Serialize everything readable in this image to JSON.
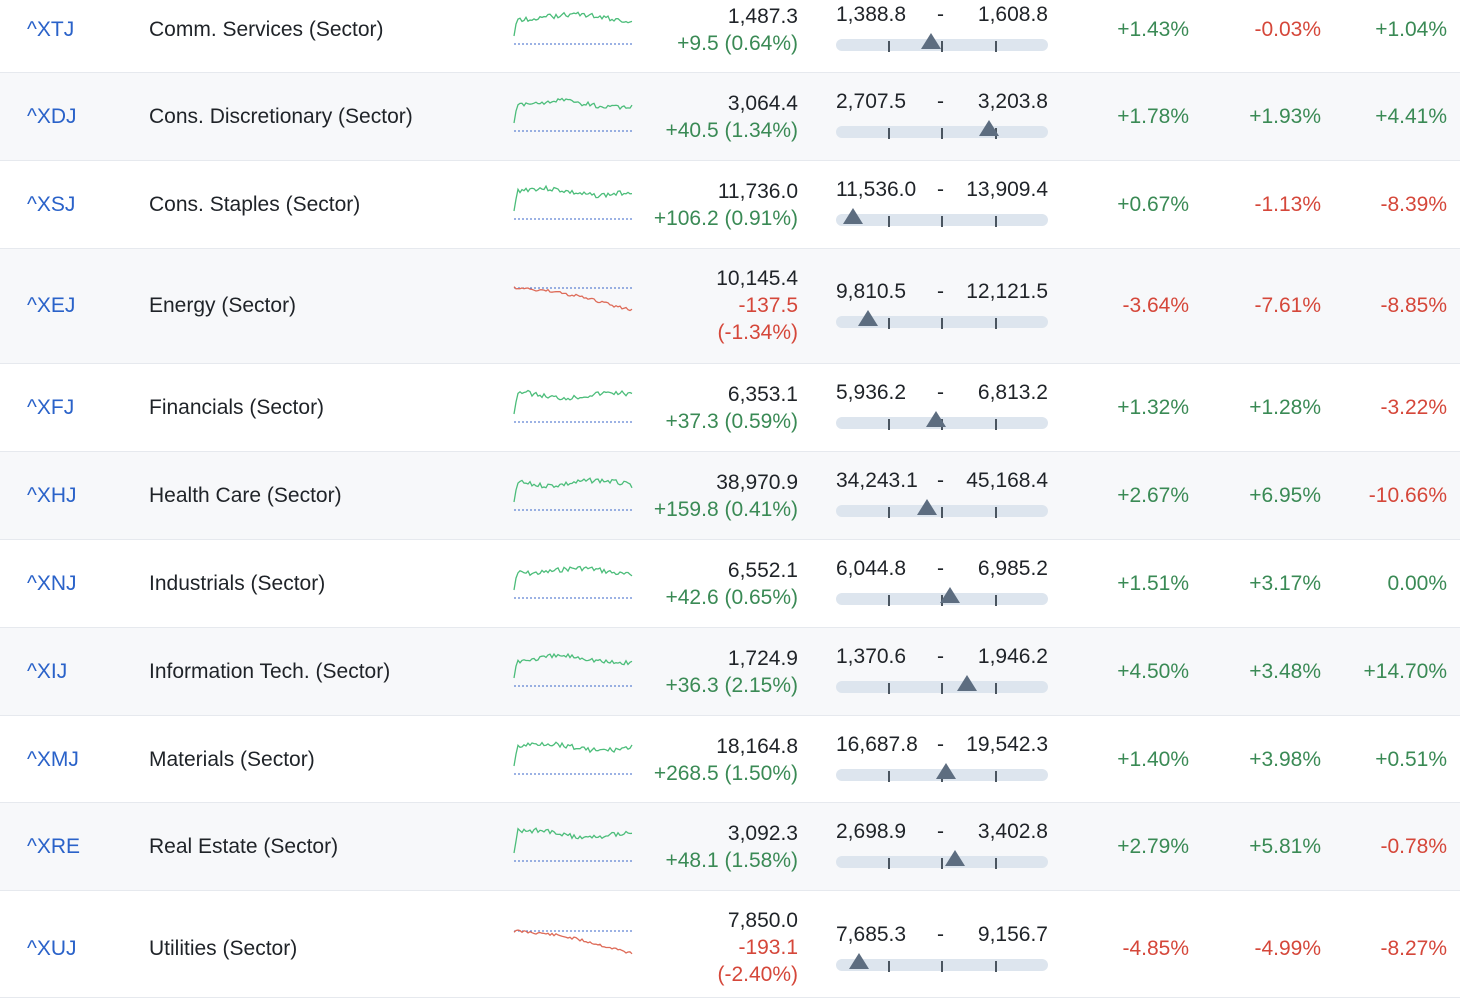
{
  "colors": {
    "positive": "#3a8a55",
    "negative": "#d5473a",
    "link": "#2a62c9",
    "spark_positive": "#4cbd7a",
    "spark_negative": "#de6b58",
    "baseline": "#3a66c8"
  },
  "rows": [
    {
      "symbol": "^XTJ",
      "name": "Comm. Services (Sector)",
      "last": "1,487.3",
      "change": "+9.5 (0.64%)",
      "change_lines": [
        "+9.5 (0.64%)"
      ],
      "trend": "up",
      "low": "1,388.8",
      "sep": "-",
      "high": "1,608.8",
      "range_position": 0.45,
      "p1": "+1.43%",
      "p2": "-0.03%",
      "p3": "+1.04%"
    },
    {
      "symbol": "^XDJ",
      "name": "Cons. Discretionary (Sector)",
      "last": "3,064.4",
      "change": "+40.5 (1.34%)",
      "change_lines": [
        "+40.5 (1.34%)"
      ],
      "trend": "up",
      "low": "2,707.5",
      "sep": "-",
      "high": "3,203.8",
      "range_position": 0.72,
      "p1": "+1.78%",
      "p2": "+1.93%",
      "p3": "+4.41%"
    },
    {
      "symbol": "^XSJ",
      "name": "Cons. Staples (Sector)",
      "last": "11,736.0",
      "change": "+106.2 (0.91%)",
      "change_lines": [
        "+106.2 (0.91%)"
      ],
      "trend": "up",
      "low": "11,536.0",
      "sep": "-",
      "high": "13,909.4",
      "range_position": 0.08,
      "p1": "+0.67%",
      "p2": "-1.13%",
      "p3": "-8.39%"
    },
    {
      "symbol": "^XEJ",
      "name": "Energy (Sector)",
      "last": "10,145.4",
      "change": "-137.5 (-1.34%)",
      "change_lines": [
        "-137.5",
        "(-1.34%)"
      ],
      "trend": "down",
      "low": "9,810.5",
      "sep": "-",
      "high": "12,121.5",
      "range_position": 0.15,
      "p1": "-3.64%",
      "p2": "-7.61%",
      "p3": "-8.85%"
    },
    {
      "symbol": "^XFJ",
      "name": "Financials (Sector)",
      "last": "6,353.1",
      "change": "+37.3 (0.59%)",
      "change_lines": [
        "+37.3 (0.59%)"
      ],
      "trend": "up",
      "low": "5,936.2",
      "sep": "-",
      "high": "6,813.2",
      "range_position": 0.47,
      "p1": "+1.32%",
      "p2": "+1.28%",
      "p3": "-3.22%"
    },
    {
      "symbol": "^XHJ",
      "name": "Health Care (Sector)",
      "last": "38,970.9",
      "change": "+159.8 (0.41%)",
      "change_lines": [
        "+159.8 (0.41%)"
      ],
      "trend": "up",
      "low": "34,243.1",
      "sep": "-",
      "high": "45,168.4",
      "range_position": 0.43,
      "p1": "+2.67%",
      "p2": "+6.95%",
      "p3": "-10.66%"
    },
    {
      "symbol": "^XNJ",
      "name": "Industrials (Sector)",
      "last": "6,552.1",
      "change": "+42.6 (0.65%)",
      "change_lines": [
        "+42.6 (0.65%)"
      ],
      "trend": "up",
      "low": "6,044.8",
      "sep": "-",
      "high": "6,985.2",
      "range_position": 0.54,
      "p1": "+1.51%",
      "p2": "+3.17%",
      "p3": "0.00%"
    },
    {
      "symbol": "^XIJ",
      "name": "Information Tech. (Sector)",
      "last": "1,724.9",
      "change": "+36.3 (2.15%)",
      "change_lines": [
        "+36.3 (2.15%)"
      ],
      "trend": "up",
      "low": "1,370.6",
      "sep": "-",
      "high": "1,946.2",
      "range_position": 0.62,
      "p1": "+4.50%",
      "p2": "+3.48%",
      "p3": "+14.70%"
    },
    {
      "symbol": "^XMJ",
      "name": "Materials (Sector)",
      "last": "18,164.8",
      "change": "+268.5 (1.50%)",
      "change_lines": [
        "+268.5 (1.50%)"
      ],
      "trend": "up",
      "low": "16,687.8",
      "sep": "-",
      "high": "19,542.3",
      "range_position": 0.52,
      "p1": "+1.40%",
      "p2": "+3.98%",
      "p3": "+0.51%"
    },
    {
      "symbol": "^XRE",
      "name": "Real Estate (Sector)",
      "last": "3,092.3",
      "change": "+48.1 (1.58%)",
      "change_lines": [
        "+48.1 (1.58%)"
      ],
      "trend": "up",
      "low": "2,698.9",
      "sep": "-",
      "high": "3,402.8",
      "range_position": 0.56,
      "p1": "+2.79%",
      "p2": "+5.81%",
      "p3": "-0.78%"
    },
    {
      "symbol": "^XUJ",
      "name": "Utilities (Sector)",
      "last": "7,850.0",
      "change": "-193.1 (-2.40%)",
      "change_lines": [
        "-193.1",
        "(-2.40%)"
      ],
      "trend": "down",
      "low": "7,685.3",
      "sep": "-",
      "high": "9,156.7",
      "range_position": 0.11,
      "p1": "-4.85%",
      "p2": "-4.99%",
      "p3": "-8.27%"
    }
  ]
}
